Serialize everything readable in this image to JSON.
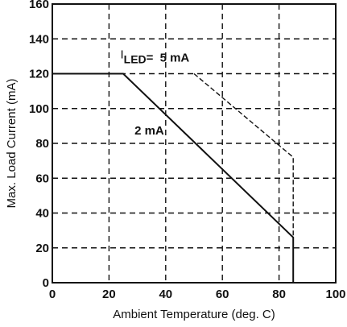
{
  "chart_data": {
    "type": "line",
    "title": "",
    "xlabel": "Ambient Temperature (deg. C)",
    "ylabel": "Max. Load Current (mA)",
    "xlim": [
      0,
      100
    ],
    "ylim": [
      0,
      160
    ],
    "x_ticks": [
      0,
      20,
      40,
      60,
      80,
      100
    ],
    "y_ticks": [
      0,
      20,
      40,
      60,
      80,
      100,
      120,
      140,
      160
    ],
    "grid": true,
    "series": [
      {
        "name": "2 mA",
        "style": "solid",
        "points": [
          [
            0,
            120
          ],
          [
            25,
            120
          ],
          [
            85,
            26
          ],
          [
            85,
            0
          ]
        ]
      },
      {
        "name": "5 mA",
        "style": "dashed",
        "points": [
          [
            50,
            120
          ],
          [
            85,
            72
          ],
          [
            85,
            0
          ]
        ]
      }
    ],
    "annotations": {
      "iled_prefix": "I",
      "iled_sub": "LED",
      "iled_eq": "= ",
      "five_ma": "5 mA",
      "two_ma": "2 mA"
    }
  }
}
